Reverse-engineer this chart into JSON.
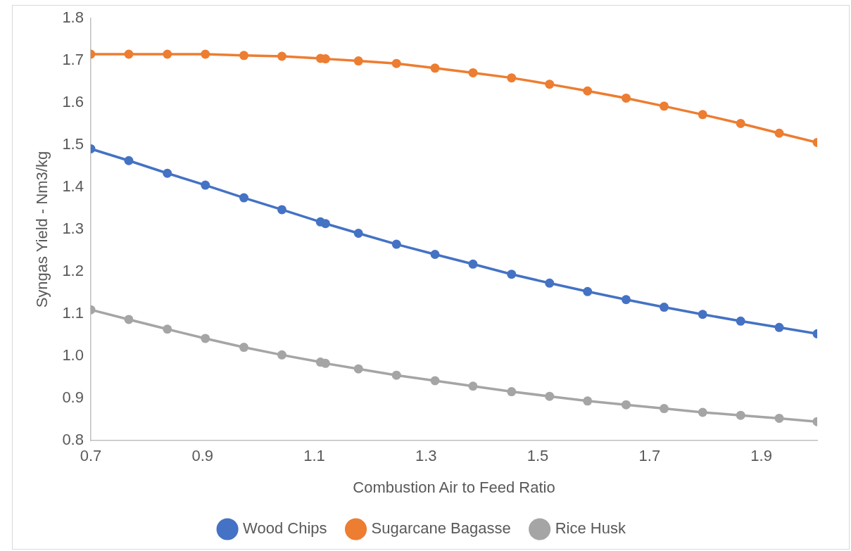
{
  "chart_data": {
    "type": "line",
    "xlabel": "Combustion Air to Feed Ratio",
    "ylabel": "Syngas Yield - Nm3/kg",
    "x": [
      0.7,
      0.768,
      0.837,
      0.905,
      0.974,
      1.042,
      1.111,
      1.12,
      1.179,
      1.247,
      1.316,
      1.384,
      1.453,
      1.521,
      1.589,
      1.658,
      1.726,
      1.795,
      1.863,
      1.932,
      2.0
    ],
    "series": [
      {
        "name": "Wood Chips",
        "color": "#4472c4",
        "values": [
          1.491,
          1.463,
          1.433,
          1.405,
          1.375,
          1.347,
          1.318,
          1.314,
          1.291,
          1.265,
          1.241,
          1.218,
          1.194,
          1.173,
          1.153,
          1.134,
          1.116,
          1.099,
          1.083,
          1.068,
          1.053
        ]
      },
      {
        "name": "Sugarcane Bagasse",
        "color": "#ed7d31",
        "values": [
          1.715,
          1.715,
          1.715,
          1.715,
          1.712,
          1.71,
          1.705,
          1.704,
          1.699,
          1.693,
          1.682,
          1.671,
          1.659,
          1.644,
          1.628,
          1.611,
          1.592,
          1.572,
          1.551,
          1.528,
          1.506
        ]
      },
      {
        "name": "Rice Husk",
        "color": "#a5a5a5",
        "values": [
          1.11,
          1.087,
          1.064,
          1.042,
          1.021,
          1.003,
          0.986,
          0.983,
          0.97,
          0.955,
          0.942,
          0.929,
          0.916,
          0.905,
          0.894,
          0.885,
          0.876,
          0.867,
          0.86,
          0.853,
          0.845
        ]
      }
    ],
    "xlim": [
      0.7,
      2.0
    ],
    "xticks": [
      0.7,
      0.9,
      1.1,
      1.3,
      1.5,
      1.7,
      1.9
    ],
    "ylim": [
      0.8,
      1.8
    ],
    "yticks": [
      0.8,
      0.9,
      {
        "value": 1,
        "label": "1.0"
      },
      1.1,
      1.2,
      1.3,
      1.4,
      1.5,
      1.6,
      1.7,
      1.8
    ],
    "grid": false,
    "legend": "bottom",
    "marker": "circle",
    "line_style": "solid"
  }
}
